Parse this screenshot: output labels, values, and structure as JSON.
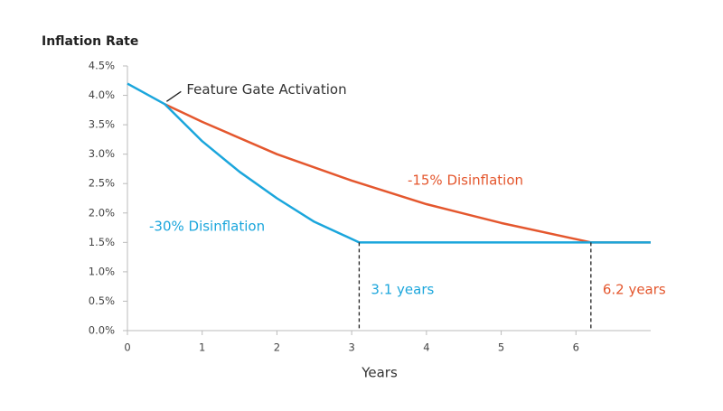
{
  "chart_data": {
    "type": "line",
    "title": "Inflation Rate",
    "x_label": "Years",
    "xlim": [
      0,
      7
    ],
    "xticks": [
      0,
      1,
      2,
      3,
      4,
      5,
      6
    ],
    "ylim": [
      0,
      4.5
    ],
    "yticks": [
      {
        "value": 0,
        "label": "0.0%"
      },
      {
        "value": 0.5,
        "label": "0.5%"
      },
      {
        "value": 1,
        "label": "1.0%"
      },
      {
        "value": 1.5,
        "label": "1.5%"
      },
      {
        "value": 2,
        "label": "2.0%"
      },
      {
        "value": 2.5,
        "label": "2.5%"
      },
      {
        "value": 3,
        "label": "3.0%"
      },
      {
        "value": 3.5,
        "label": "3.5%"
      },
      {
        "value": 4,
        "label": "4.0%"
      },
      {
        "value": 4.5,
        "label": "4.5%"
      }
    ],
    "grid": false,
    "series": [
      {
        "name": "-30% Disinflation",
        "color": "#1ba6dc",
        "x": [
          0,
          0.5,
          1,
          1.5,
          2,
          2.5,
          3.1,
          4,
          5,
          6,
          7
        ],
        "values": [
          4.2,
          3.85,
          3.22,
          2.7,
          2.25,
          1.85,
          1.5,
          1.5,
          1.5,
          1.5,
          1.5
        ]
      },
      {
        "name": "-15% Disinflation",
        "color": "#e4572e",
        "x": [
          0.5,
          1,
          2,
          3,
          4,
          5,
          6.2,
          7
        ],
        "values": [
          3.85,
          3.55,
          3.0,
          2.55,
          2.15,
          1.83,
          1.5,
          1.5
        ]
      }
    ],
    "annotations": [
      {
        "text": "Feature Gate Activation",
        "x": 0.5,
        "y": 3.85
      }
    ],
    "markers": [
      {
        "x": 3.1,
        "y": 1.5,
        "label": "3.1 years",
        "color": "#1ba6dc"
      },
      {
        "x": 6.2,
        "y": 1.5,
        "label": "6.2 years",
        "color": "#e4572e"
      }
    ]
  }
}
